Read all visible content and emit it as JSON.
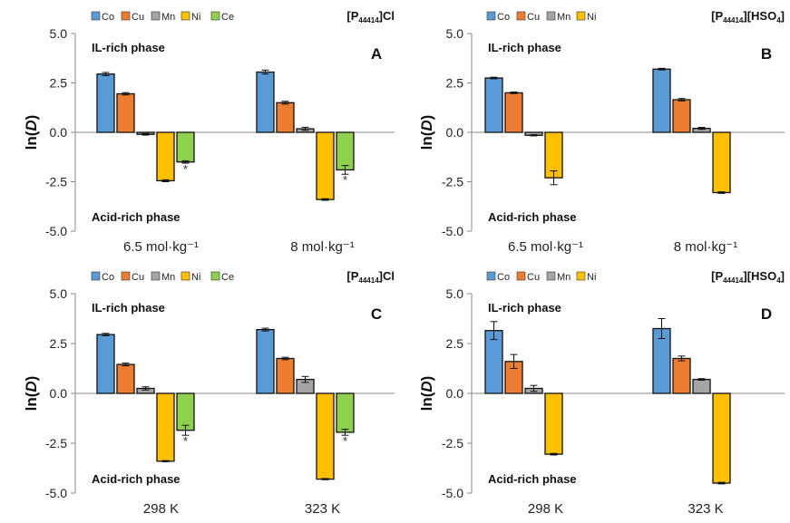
{
  "y_axis_label": "ln(D)",
  "chart_data": [
    {
      "type": "bar",
      "panel": "A",
      "ionic_liquid": "[P44414]Cl",
      "categories": [
        "6.5 mol·kg⁻¹",
        "8 mol·kg⁻¹"
      ],
      "series": [
        {
          "name": "Co",
          "values": [
            2.95,
            3.05
          ],
          "errors": [
            0.08,
            0.1
          ]
        },
        {
          "name": "Cu",
          "values": [
            1.95,
            1.5
          ],
          "errors": [
            0.06,
            0.07
          ]
        },
        {
          "name": "Mn",
          "values": [
            -0.1,
            0.18
          ],
          "errors": [
            0.04,
            0.08
          ]
        },
        {
          "name": "Ni",
          "values": [
            -2.45,
            -3.4
          ],
          "errors": [
            0.05,
            0.04
          ]
        },
        {
          "name": "Ce",
          "values": [
            -1.5,
            -1.9
          ],
          "errors": [
            0.06,
            0.22
          ]
        }
      ],
      "asterisks": [
        "*",
        "*"
      ],
      "ylim": [
        -5,
        5
      ],
      "yticks": [
        "5.0",
        "2.5",
        "0.0",
        "-2.5",
        "-5.0"
      ],
      "top_annotation": "IL-rich phase",
      "bottom_annotation": "Acid-rich phase",
      "grid": false,
      "legend_position": "top-left"
    },
    {
      "type": "bar",
      "panel": "B",
      "ionic_liquid": "[P44414][HSO4]",
      "categories": [
        "6.5 mol·kg⁻¹",
        "8 mol·kg⁻¹"
      ],
      "series": [
        {
          "name": "Co",
          "values": [
            2.75,
            3.2
          ],
          "errors": [
            0.04,
            0.04
          ]
        },
        {
          "name": "Cu",
          "values": [
            2.0,
            1.65
          ],
          "errors": [
            0.04,
            0.06
          ]
        },
        {
          "name": "Mn",
          "values": [
            -0.15,
            0.2
          ],
          "errors": [
            0.03,
            0.05
          ]
        },
        {
          "name": "Ni",
          "values": [
            -2.3,
            -3.05
          ],
          "errors": [
            0.35,
            0.04
          ]
        }
      ],
      "ylim": [
        -5,
        5
      ],
      "yticks": [
        "5.0",
        "2.5",
        "0.0",
        "-2.5",
        "-5.0"
      ],
      "top_annotation": "IL-rich phase",
      "bottom_annotation": "Acid-rich phase",
      "grid": false,
      "legend_position": "top-left"
    },
    {
      "type": "bar",
      "panel": "C",
      "ionic_liquid": "[P44414]Cl",
      "categories": [
        "298 K",
        "323 K"
      ],
      "series": [
        {
          "name": "Co",
          "values": [
            2.95,
            3.2
          ],
          "errors": [
            0.06,
            0.07
          ]
        },
        {
          "name": "Cu",
          "values": [
            1.45,
            1.75
          ],
          "errors": [
            0.07,
            0.06
          ]
        },
        {
          "name": "Mn",
          "values": [
            0.25,
            0.7
          ],
          "errors": [
            0.08,
            0.15
          ]
        },
        {
          "name": "Ni",
          "values": [
            -3.4,
            -4.3
          ],
          "errors": [
            0.03,
            0.03
          ]
        },
        {
          "name": "Ce",
          "values": [
            -1.85,
            -1.95
          ],
          "errors": [
            0.25,
            0.15
          ]
        }
      ],
      "asterisks": [
        "*",
        "*"
      ],
      "ylim": [
        -5,
        5
      ],
      "yticks": [
        "5.0",
        "2.5",
        "0.0",
        "-2.5",
        "-5.0"
      ],
      "top_annotation": "IL-rich phase",
      "bottom_annotation": "Acid-rich phase",
      "grid": false,
      "legend_position": "top-left"
    },
    {
      "type": "bar",
      "panel": "D",
      "ionic_liquid": "[P44414][HSO4]",
      "categories": [
        "298 K",
        "323 K"
      ],
      "series": [
        {
          "name": "Co",
          "values": [
            3.15,
            3.25
          ],
          "errors": [
            0.45,
            0.5
          ]
        },
        {
          "name": "Cu",
          "values": [
            1.6,
            1.75
          ],
          "errors": [
            0.35,
            0.12
          ]
        },
        {
          "name": "Mn",
          "values": [
            0.25,
            0.7
          ],
          "errors": [
            0.15,
            0.04
          ]
        },
        {
          "name": "Ni",
          "values": [
            -3.05,
            -4.5
          ],
          "errors": [
            0.04,
            0.04
          ]
        }
      ],
      "ylim": [
        -5,
        5
      ],
      "yticks": [
        "5.0",
        "2.5",
        "0.0",
        "-2.5",
        "-5.0"
      ],
      "top_annotation": "IL-rich phase",
      "bottom_annotation": "Acid-rich phase",
      "grid": false,
      "legend_position": "top-left"
    }
  ],
  "colors": {
    "Co": "#5b9bd5",
    "Cu": "#ed7d31",
    "Mn": "#a5a5a5",
    "Ni": "#ffc000",
    "Ce": "#8fd14f"
  }
}
